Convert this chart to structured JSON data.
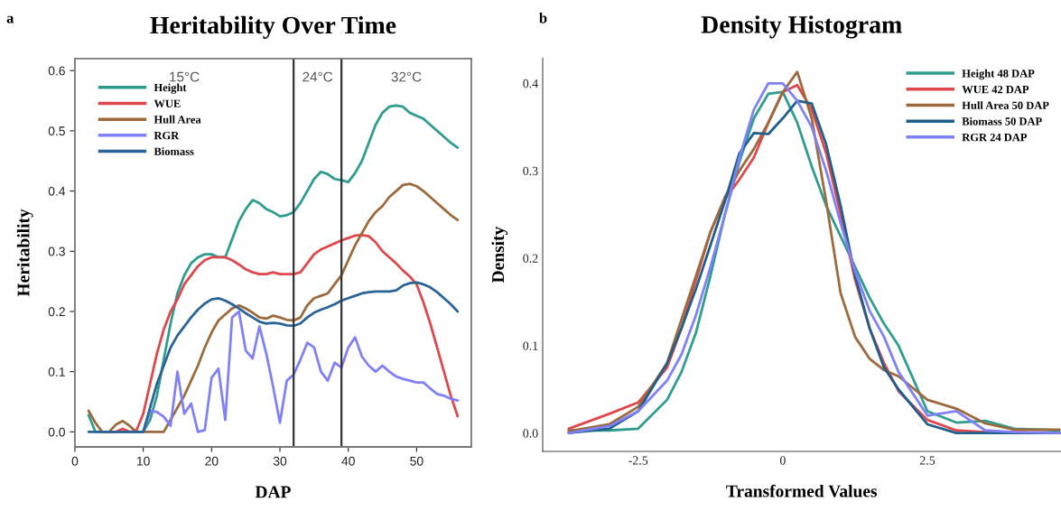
{
  "chart_data": [
    {
      "type": "line",
      "title": "Heritability Over Time",
      "xlabel": "DAP",
      "ylabel": "Heritability",
      "annotations": [
        "a",
        "15°C",
        "24°C",
        "32°C"
      ],
      "x": [
        2,
        3,
        4,
        5,
        6,
        7,
        8,
        9,
        10,
        11,
        12,
        13,
        14,
        15,
        16,
        17,
        18,
        19,
        20,
        21,
        22,
        23,
        24,
        25,
        26,
        27,
        28,
        29,
        30,
        31,
        32,
        33,
        34,
        35,
        36,
        37,
        38,
        39,
        40,
        41,
        42,
        43,
        44,
        45,
        46,
        47,
        48,
        49,
        50,
        51,
        52,
        53,
        54,
        55,
        56
      ],
      "series": [
        {
          "name": "Height",
          "color": "#2e9c8f",
          "values": [
            0.028,
            0,
            0,
            0,
            0,
            0,
            0,
            0,
            0,
            0.02,
            0.06,
            0.12,
            0.18,
            0.23,
            0.26,
            0.28,
            0.29,
            0.295,
            0.295,
            0.29,
            0.29,
            0.32,
            0.35,
            0.37,
            0.385,
            0.38,
            0.37,
            0.365,
            0.358,
            0.36,
            0.365,
            0.38,
            0.4,
            0.42,
            0.432,
            0.428,
            0.42,
            0.418,
            0.415,
            0.43,
            0.45,
            0.48,
            0.51,
            0.53,
            0.54,
            0.542,
            0.54,
            0.53,
            0.525,
            0.52,
            0.51,
            0.5,
            0.49,
            0.48,
            0.472
          ]
        },
        {
          "name": "WUE",
          "color": "#e0474c",
          "values": [
            null,
            null,
            null,
            0,
            0,
            0.005,
            0,
            0.002,
            0.03,
            0.08,
            0.13,
            0.17,
            0.2,
            0.22,
            0.245,
            0.26,
            0.275,
            0.285,
            0.29,
            0.29,
            0.29,
            0.285,
            0.278,
            0.27,
            0.265,
            0.262,
            0.262,
            0.265,
            0.262,
            0.262,
            0.262,
            0.265,
            0.28,
            0.295,
            0.303,
            0.308,
            0.313,
            0.318,
            0.322,
            0.326,
            0.327,
            0.325,
            0.315,
            0.3,
            0.29,
            0.28,
            0.268,
            0.258,
            0.245,
            0.215,
            0.18,
            0.14,
            0.1,
            0.06,
            0.026
          ]
        },
        {
          "name": "Hull Area",
          "color": "#9c6a3c",
          "values": [
            0.035,
            0.015,
            0,
            0,
            0.012,
            0.018,
            0.01,
            0,
            0,
            0,
            0,
            0,
            0.02,
            0.04,
            0.06,
            0.085,
            0.11,
            0.14,
            0.165,
            0.185,
            0.195,
            0.205,
            0.21,
            0.205,
            0.198,
            0.19,
            0.188,
            0.193,
            0.19,
            0.186,
            0.185,
            0.19,
            0.21,
            0.222,
            0.226,
            0.23,
            0.245,
            0.26,
            0.285,
            0.31,
            0.33,
            0.35,
            0.365,
            0.375,
            0.39,
            0.4,
            0.41,
            0.412,
            0.408,
            0.4,
            0.39,
            0.38,
            0.37,
            0.36,
            0.352
          ]
        },
        {
          "name": "RGR",
          "color": "#8080f8",
          "values": [
            null,
            null,
            null,
            null,
            null,
            null,
            null,
            0,
            0,
            0.035,
            0.033,
            0.025,
            0.01,
            0.1,
            0.03,
            0.047,
            0,
            0.003,
            0.09,
            0.105,
            0.02,
            0.19,
            0.2,
            0.135,
            0.122,
            0.175,
            0.13,
            0.075,
            0.015,
            0.085,
            0.095,
            0.12,
            0.148,
            0.14,
            0.1,
            0.085,
            0.115,
            0.107,
            0.14,
            0.157,
            0.125,
            0.11,
            0.1,
            0.11,
            0.1,
            0.092,
            0.088,
            0.085,
            0.082,
            0.082,
            0.072,
            0.063,
            0.06,
            0.055,
            0.052
          ]
        },
        {
          "name": "Biomass",
          "color": "#2a6496",
          "values": [
            0,
            0,
            0,
            0,
            0,
            0,
            0,
            0,
            0,
            0.04,
            0.08,
            0.11,
            0.14,
            0.16,
            0.175,
            0.19,
            0.203,
            0.213,
            0.22,
            0.222,
            0.218,
            0.212,
            0.205,
            0.197,
            0.19,
            0.183,
            0.18,
            0.181,
            0.18,
            0.177,
            0.176,
            0.18,
            0.19,
            0.198,
            0.203,
            0.207,
            0.212,
            0.218,
            0.222,
            0.226,
            0.23,
            0.232,
            0.233,
            0.233,
            0.233,
            0.235,
            0.243,
            0.247,
            0.248,
            0.245,
            0.24,
            0.232,
            0.222,
            0.212,
            0.2
          ]
        }
      ],
      "xlim": [
        0,
        58
      ],
      "ylim": [
        -0.025,
        0.62
      ],
      "xticks": [
        0,
        10,
        20,
        30,
        40,
        50
      ],
      "yticks": [
        {
          "value": 0,
          "label": "0.0"
        },
        {
          "value": 0.1,
          "label": "0.1"
        },
        {
          "value": 0.2,
          "label": "0.2"
        },
        {
          "value": 0.3,
          "label": "0.3"
        },
        {
          "value": 0.4,
          "label": "0.4"
        },
        {
          "value": 0.5,
          "label": "0.5"
        },
        {
          "value": 0.6,
          "label": "0.6"
        }
      ],
      "ref_lines": [
        {
          "axis": "x",
          "value": 32,
          "color": "#333333"
        },
        {
          "axis": "x",
          "value": 39,
          "color": "#333333"
        }
      ],
      "legend": "top left",
      "grid": false
    },
    {
      "type": "line",
      "title": "Density Histogram",
      "xlabel": "Transformed Values",
      "ylabel": "Density",
      "annotations": [
        "b"
      ],
      "x": [
        -3.7,
        -3,
        -2.5,
        -2,
        -1.75,
        -1.5,
        -1.25,
        -1,
        -0.75,
        -0.5,
        -0.25,
        0,
        0.25,
        0.5,
        0.75,
        1,
        1.25,
        1.5,
        1.75,
        2,
        2.5,
        3,
        3.5,
        4,
        4.8
      ],
      "series": [
        {
          "name": "Height 48 DAP",
          "color": "#2e9c8f",
          "values": [
            0.003,
            0.003,
            0.005,
            0.038,
            0.07,
            0.115,
            0.18,
            0.25,
            0.31,
            0.36,
            0.388,
            0.39,
            0.355,
            0.305,
            0.26,
            0.225,
            0.19,
            0.155,
            0.125,
            0.1,
            0.025,
            0.012,
            0.014,
            0.005,
            0.003
          ]
        },
        {
          "name": "WUE 42 DAP",
          "color": "#e0474c",
          "values": [
            0.005,
            0.022,
            0.035,
            0.075,
            0.12,
            0.175,
            0.23,
            0.268,
            0.29,
            0.315,
            0.355,
            0.39,
            0.398,
            0.37,
            0.32,
            0.25,
            0.175,
            0.12,
            0.08,
            0.048,
            0.015,
            0.003,
            0.001,
            0.001,
            0
          ]
        },
        {
          "name": "Hull Area 50 DAP",
          "color": "#9c6a3c",
          "values": [
            0.002,
            0.01,
            0.03,
            0.08,
            0.13,
            0.18,
            0.23,
            0.27,
            0.3,
            0.325,
            0.355,
            0.39,
            0.413,
            0.36,
            0.265,
            0.16,
            0.11,
            0.085,
            0.072,
            0.065,
            0.038,
            0.028,
            0.011,
            0.004,
            0.004
          ]
        },
        {
          "name": "Biomass 50 DAP",
          "color": "#1f5f8b",
          "values": [
            0,
            0.005,
            0.025,
            0.08,
            0.12,
            0.165,
            0.215,
            0.265,
            0.32,
            0.343,
            0.342,
            0.36,
            0.38,
            0.377,
            0.33,
            0.26,
            0.18,
            0.12,
            0.075,
            0.05,
            0.01,
            0,
            0,
            0,
            0
          ]
        },
        {
          "name": "RGR 24 DAP",
          "color": "#8080f8",
          "values": [
            0,
            0.008,
            0.025,
            0.06,
            0.09,
            0.135,
            0.19,
            0.25,
            0.315,
            0.37,
            0.4,
            0.4,
            0.38,
            0.35,
            0.3,
            0.24,
            0.185,
            0.14,
            0.11,
            0.07,
            0.02,
            0.025,
            0.003,
            0.001,
            0
          ]
        }
      ],
      "xlim": [
        -4.15,
        4.8
      ],
      "ylim": [
        -0.021,
        0.429
      ],
      "xticks": [
        {
          "value": -2.5,
          "label": "-2.5"
        },
        0,
        2.5
      ],
      "yticks": [
        {
          "value": 0,
          "label": "0.0"
        },
        {
          "value": 0.1,
          "label": "0.1"
        },
        {
          "value": 0.2,
          "label": "0.2"
        },
        {
          "value": 0.3,
          "label": "0.3"
        },
        {
          "value": 0.4,
          "label": "0.4"
        }
      ],
      "legend": "top right",
      "grid": false
    }
  ]
}
